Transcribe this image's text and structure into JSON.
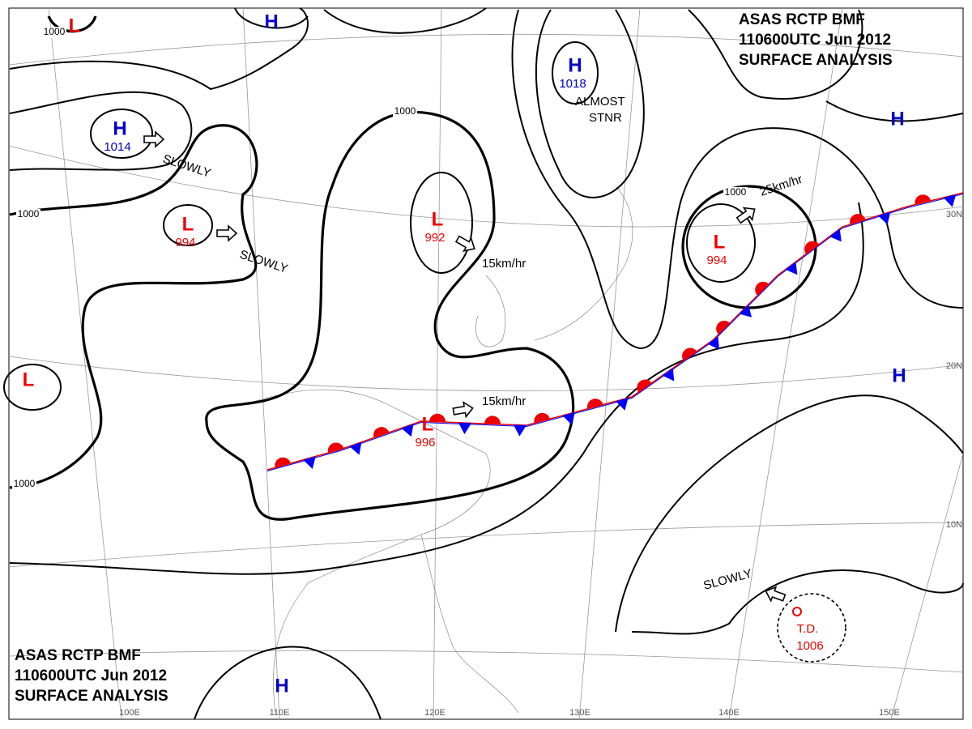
{
  "header_top": {
    "lines": [
      "ASAS    RCTP    BMF",
      "110600UTC    Jun    2012",
      "SURFACE  ANALYSIS"
    ]
  },
  "header_bottom": {
    "lines": [
      "ASAS    RCTP    BMF",
      "110600UTC    Jun    2012",
      "SURFACE  ANALYSIS"
    ]
  },
  "pressure_centers": [
    {
      "symbol": "L"
    },
    {
      "symbol": "H"
    },
    {
      "symbol": "H",
      "pressure": 1014
    },
    {
      "symbol": "L",
      "pressure": 994
    },
    {
      "symbol": "L",
      "pressure": 992
    },
    {
      "symbol": "H",
      "pressure": 1018
    },
    {
      "symbol": "L",
      "pressure": 994
    },
    {
      "symbol": "H"
    },
    {
      "symbol": "L"
    },
    {
      "symbol": "L",
      "pressure": 996
    },
    {
      "symbol": "H"
    },
    {
      "symbol": "H"
    }
  ],
  "tropical_depression": {
    "label": "T.D.",
    "pressure": 1006
  },
  "motions": [
    "SLOWLY",
    "SLOWLY",
    "15km/hr",
    "ALMOST",
    "STNR",
    "25km/hr",
    "15km/hr",
    "SLOWLY"
  ],
  "isobar_labels": [
    "1000",
    "1000",
    "1000",
    "1000",
    "1000"
  ],
  "latitudes": [
    "30N",
    "20N",
    "10N"
  ],
  "longitudes": [
    "100E",
    "110E",
    "120E",
    "130E",
    "140E",
    "150E"
  ]
}
